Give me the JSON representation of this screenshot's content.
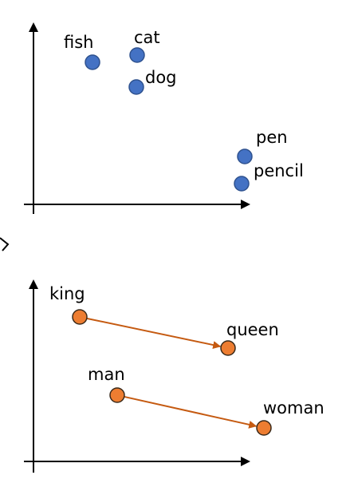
{
  "colors": {
    "axis": "#000000",
    "top_point_fill": "#4472C4",
    "top_point_stroke": "#2F528F",
    "bottom_point_fill": "#ED7D31",
    "bottom_point_stroke": "#3B2A1A",
    "arrow": "#C55A11"
  },
  "top_plot": {
    "words": [
      {
        "label": "fish"
      },
      {
        "label": "cat"
      },
      {
        "label": "dog"
      },
      {
        "label": "pen"
      },
      {
        "label": "pencil"
      }
    ]
  },
  "bottom_plot": {
    "words": [
      {
        "label": "king"
      },
      {
        "label": "queen"
      },
      {
        "label": "man"
      },
      {
        "label": "woman"
      }
    ],
    "relations": [
      {
        "from": "king",
        "to": "queen"
      },
      {
        "from": "man",
        "to": "woman"
      }
    ]
  }
}
